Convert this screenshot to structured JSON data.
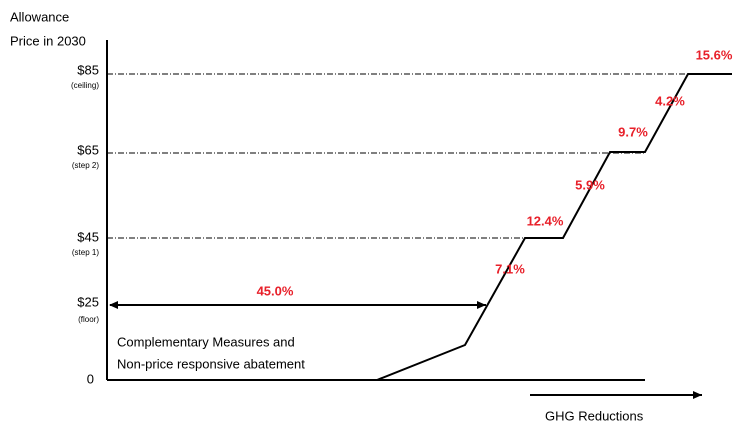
{
  "y_axis": {
    "title": [
      "Allowance",
      "Price in 2030"
    ],
    "ticks": [
      {
        "label": "$85",
        "note": "(ceiling)"
      },
      {
        "label": "$65",
        "note": "(step 2)"
      },
      {
        "label": "$45",
        "note": "(step 1)"
      },
      {
        "label": "$25",
        "note": "(floor)"
      }
    ],
    "zero": "0"
  },
  "complementary": {
    "share": "45.0%",
    "text": [
      "Complementary Measures and",
      "Non-price responsive abatement"
    ]
  },
  "segments": [
    "7.1%",
    "12.4%",
    "5.9%",
    "9.7%",
    "4.2%",
    "15.6%"
  ],
  "x_axis_label": "GHG Reductions"
}
